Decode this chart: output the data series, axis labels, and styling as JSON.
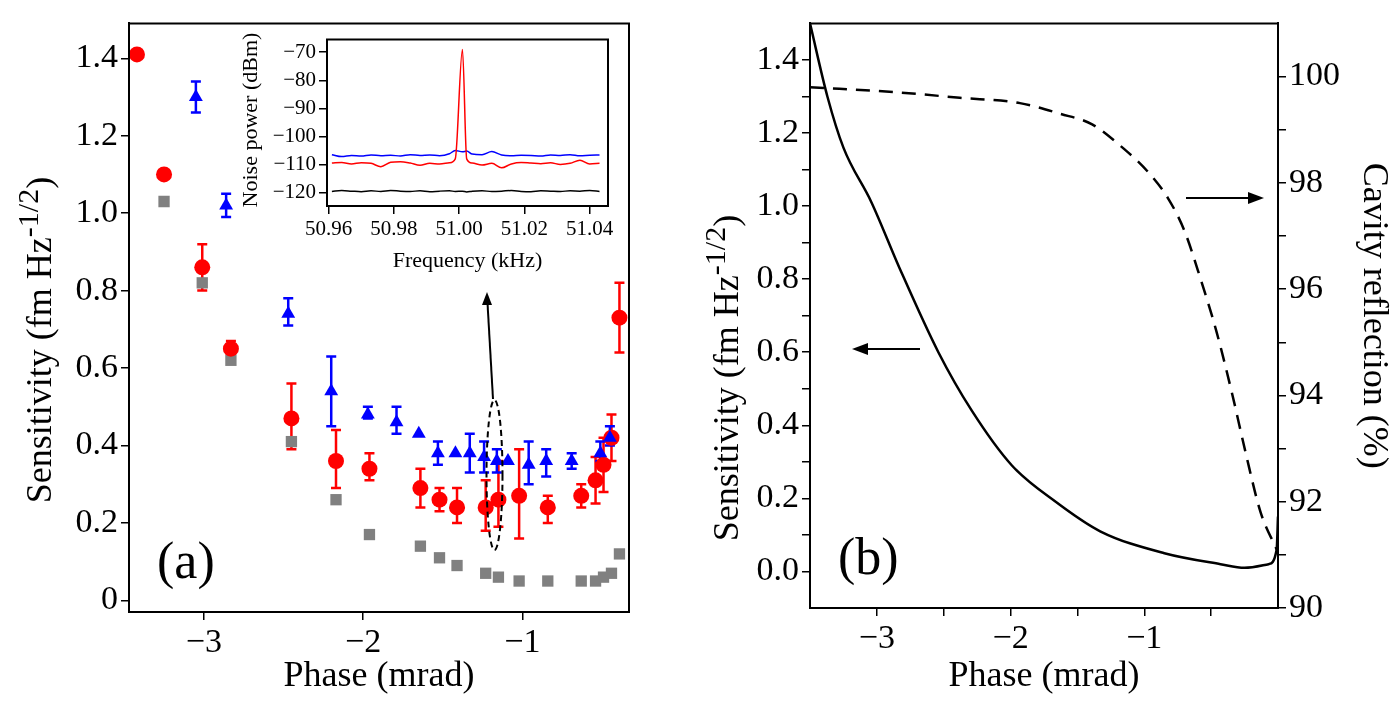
{
  "chart_data": [
    {
      "type": "scatter",
      "xlabel": "Phase (mrad)",
      "ylabel": "Sensitivity (fm Hz$^{-1/2}$)",
      "annotations": [
        "(a)"
      ],
      "xlim": [
        -3.47,
        -0.33
      ],
      "ylim": [
        -0.03,
        1.49
      ],
      "xticks": [
        {
          "value": -3,
          "label": "−3"
        },
        {
          "value": -2,
          "label": "−2"
        },
        {
          "value": -1,
          "label": "−1"
        }
      ],
      "yticks": [
        0,
        0.2,
        0.4,
        0.6,
        0.8,
        {
          "value": 1,
          "label": "1.0"
        },
        1.2,
        1.4
      ],
      "series": [
        {
          "color": "#808080",
          "marker": "square",
          "x": [
            -3.25,
            -3.01,
            -2.83,
            -2.45,
            -2.17,
            -1.96,
            -1.64,
            -1.52,
            -1.41,
            -1.23,
            -1.15,
            -1.02,
            -0.84,
            -0.63,
            -0.54,
            -0.49,
            -0.44,
            -0.39
          ],
          "values": [
            1.03,
            0.82,
            0.62,
            0.41,
            0.26,
            0.17,
            0.14,
            0.11,
            0.09,
            0.07,
            0.06,
            0.05,
            0.05,
            0.05,
            0.05,
            0.06,
            0.07,
            0.12
          ]
        },
        {
          "color": "#ff0000",
          "marker": "circle",
          "x": [
            -3.42,
            -3.25,
            -3.01,
            -2.83,
            -2.45,
            -2.17,
            -1.96,
            -1.64,
            -1.52,
            -1.41,
            -1.23,
            -1.15,
            -1.02,
            -0.84,
            -0.63,
            -0.54,
            -0.49,
            -0.44,
            -0.39
          ],
          "values": [
            1.41,
            1.1,
            0.86,
            0.65,
            0.47,
            0.36,
            0.34,
            0.29,
            0.26,
            0.24,
            0.24,
            0.26,
            0.27,
            0.24,
            0.27,
            0.31,
            0.35,
            0.42,
            0.73
          ],
          "errors": [
            null,
            null,
            [
              0.8,
              0.92
            ],
            [
              0.65,
              0.67
            ],
            [
              0.39,
              0.56
            ],
            [
              0.29,
              0.44
            ],
            [
              0.31,
              0.38
            ],
            [
              0.24,
              0.34
            ],
            [
              0.23,
              0.29
            ],
            [
              0.2,
              0.29
            ],
            [
              0.18,
              0.31
            ],
            [
              0.19,
              0.36
            ],
            [
              0.16,
              0.39
            ],
            [
              0.2,
              0.27
            ],
            [
              0.24,
              0.3
            ],
            [
              0.25,
              0.37
            ],
            [
              0.28,
              0.42
            ],
            [
              0.36,
              0.48
            ],
            [
              0.64,
              0.82
            ]
          ]
        },
        {
          "color": "#0000ff",
          "marker": "triangle",
          "x": [
            -3.05,
            -2.86,
            -2.47,
            -2.2,
            -1.97,
            -1.79,
            -1.65,
            -1.53,
            -1.42,
            -1.33,
            -1.24,
            -1.16,
            -1.09,
            -0.96,
            -0.85,
            -0.69,
            -0.51,
            -0.45
          ],
          "values": [
            1.3,
            1.02,
            0.74,
            0.54,
            0.48,
            0.46,
            0.43,
            0.38,
            0.38,
            0.38,
            0.37,
            0.36,
            0.36,
            0.35,
            0.36,
            0.36,
            0.38,
            0.42
          ],
          "errors": [
            [
              1.26,
              1.34
            ],
            [
              0.99,
              1.05
            ],
            [
              0.71,
              0.78
            ],
            [
              0.45,
              0.63
            ],
            [
              0.47,
              0.5
            ],
            [
              0.43,
              0.5
            ],
            null,
            [
              0.35,
              0.41
            ],
            null,
            [
              0.33,
              0.43
            ],
            [
              0.33,
              0.41
            ],
            [
              0.33,
              0.39
            ],
            null,
            [
              0.3,
              0.41
            ],
            [
              0.32,
              0.39
            ],
            [
              0.34,
              0.38
            ],
            [
              0.36,
              0.41
            ],
            [
              0.4,
              0.45
            ]
          ]
        }
      ]
    },
    {
      "type": "line",
      "xlabel": "Frequency (kHz)",
      "ylabel": "Noise power (dBm)",
      "marker": "none",
      "line_style": "solid",
      "xlim": [
        50.9595,
        51.0456
      ],
      "ylim": [
        -124.8,
        -65.5
      ],
      "xticks": [
        50.96,
        50.98,
        {
          "value": 51,
          "label": "51.00"
        },
        51.02,
        51.04
      ],
      "yticks": [
        {
          "value": -70,
          "label": "−70"
        },
        {
          "value": -80,
          "label": "−80"
        },
        {
          "value": -90,
          "label": "−90"
        },
        {
          "value": -100,
          "label": "−100"
        },
        {
          "value": -110,
          "label": "−110"
        },
        {
          "value": -120,
          "label": "−120"
        }
      ],
      "x": [
        50.961,
        50.964,
        50.967,
        50.97,
        50.973,
        50.976,
        50.979,
        50.982,
        50.985,
        50.988,
        50.991,
        50.994,
        50.997,
        50.9988,
        51.001,
        51.0023,
        51.004,
        51.007,
        51.01,
        51.013,
        51.016,
        51.019,
        51.022,
        51.025,
        51.028,
        51.031,
        51.034,
        51.037,
        51.04,
        51.043
      ],
      "series": [
        {
          "color": "#000000",
          "values": [
            -119.6,
            -119.3,
            -119.5,
            -119.7,
            -119.4,
            -119.6,
            -119.3,
            -119.5,
            -119.6,
            -119.4,
            -119.7,
            -119.5,
            -119.4,
            -119.6,
            -119.5,
            -119.8,
            -119.5,
            -119.4,
            -119.6,
            -119.5,
            -119.3,
            -119.6,
            -119.7,
            -119.4,
            -119.5,
            -119.6,
            -119.4,
            -119.5,
            -119.3,
            -119.6
          ]
        },
        {
          "color": "#0000ff",
          "values": [
            -106.5,
            -107.2,
            -106.8,
            -107,
            -106.6,
            -106.9,
            -106.7,
            -107,
            -106.5,
            -106.8,
            -106.6,
            -106.9,
            -106.2,
            -105,
            -105.5,
            -105.2,
            -106.3,
            -106.5,
            -105.4,
            -106.6,
            -106.9,
            -106.7,
            -106.8,
            -107,
            -106.6,
            -106.8,
            -106.5,
            -106.9,
            -106.7,
            -106.6
          ]
        },
        {
          "color": "#ff0000",
          "values": [
            -109.5,
            -109.3,
            -109.8,
            -109.4,
            -109.6,
            -110.8,
            -109.2,
            -109,
            -109.5,
            -110.3,
            -109.6,
            -109.8,
            -109.4,
            -108,
            -69,
            -108,
            -109.5,
            -110.2,
            -109.6,
            -111.2,
            -109.8,
            -109.3,
            -109.5,
            -109.7,
            -109.4,
            -110,
            -109.6,
            -108.5,
            -109.8,
            -109.6
          ]
        }
      ]
    },
    {
      "type": "line",
      "xlabel": "Phase (mrad)",
      "ylabel": "Sensitivity (fm Hz$^{-1/2}$)",
      "y2label": "Cavity reflection (%)",
      "annotations": [
        "(b)"
      ],
      "marker": "none",
      "xlim": [
        -3.5,
        0
      ],
      "ylim": [
        -0.1,
        1.5
      ],
      "y2lim": [
        90,
        101
      ],
      "xticks": [
        {
          "value": -3,
          "label": "−3"
        },
        {
          "value": -2.5,
          "label": null
        },
        {
          "value": -2,
          "label": "−2"
        },
        {
          "value": -1.5,
          "label": null
        },
        {
          "value": -1,
          "label": "−1"
        },
        {
          "value": -0.5,
          "label": null
        }
      ],
      "yticks": [
        {
          "value": 0,
          "label": "0.0"
        },
        {
          "value": 0.1,
          "label": null
        },
        0.2,
        {
          "value": 0.3,
          "label": null
        },
        0.4,
        {
          "value": 0.5,
          "label": null
        },
        0.6,
        {
          "value": 0.7,
          "label": null
        },
        0.8,
        {
          "value": 0.9,
          "label": null
        },
        {
          "value": 1,
          "label": "1.0"
        },
        {
          "value": 1.1,
          "label": null
        },
        1.2,
        {
          "value": 1.3,
          "label": null
        },
        1.4
      ],
      "y2ticks": [
        90,
        {
          "value": 91,
          "label": null
        },
        92,
        {
          "value": 93,
          "label": null
        },
        94,
        {
          "value": 95,
          "label": null
        },
        96,
        {
          "value": 97,
          "label": null
        },
        98,
        {
          "value": 99,
          "label": null
        },
        100
      ],
      "series": [
        {
          "color": "#000000",
          "line_style": "solid",
          "x": [
            -3.5,
            -3.37,
            -3.25,
            -3.04,
            -2.83,
            -2.54,
            -2.29,
            -1.99,
            -1.66,
            -1.33,
            -0.85,
            -0.43,
            -0.25,
            -0.07,
            -0.01,
            0
          ],
          "values": [
            1.5,
            1.3,
            1.16,
            1.01,
            0.83,
            0.6,
            0.44,
            0.29,
            0.19,
            0.11,
            0.05,
            0.02,
            0.01,
            0.02,
            0.06,
            0.15
          ]
        },
        {
          "color": "#000000",
          "line_style": "dashed",
          "axis": "y2",
          "x": [
            -3.5,
            -2.83,
            -2.38,
            -1.93,
            -1.63,
            -1.39,
            -1.18,
            -0.97,
            -0.82,
            -0.7,
            -0.58,
            -0.46,
            -0.34,
            -0.24,
            -0.13,
            -0.01
          ],
          "values": [
            99.8,
            99.7,
            99.6,
            99.5,
            99.3,
            99.1,
            98.7,
            98.2,
            97.7,
            97.1,
            96.2,
            95.2,
            94,
            92.9,
            91.8,
            91.1
          ]
        }
      ]
    }
  ]
}
